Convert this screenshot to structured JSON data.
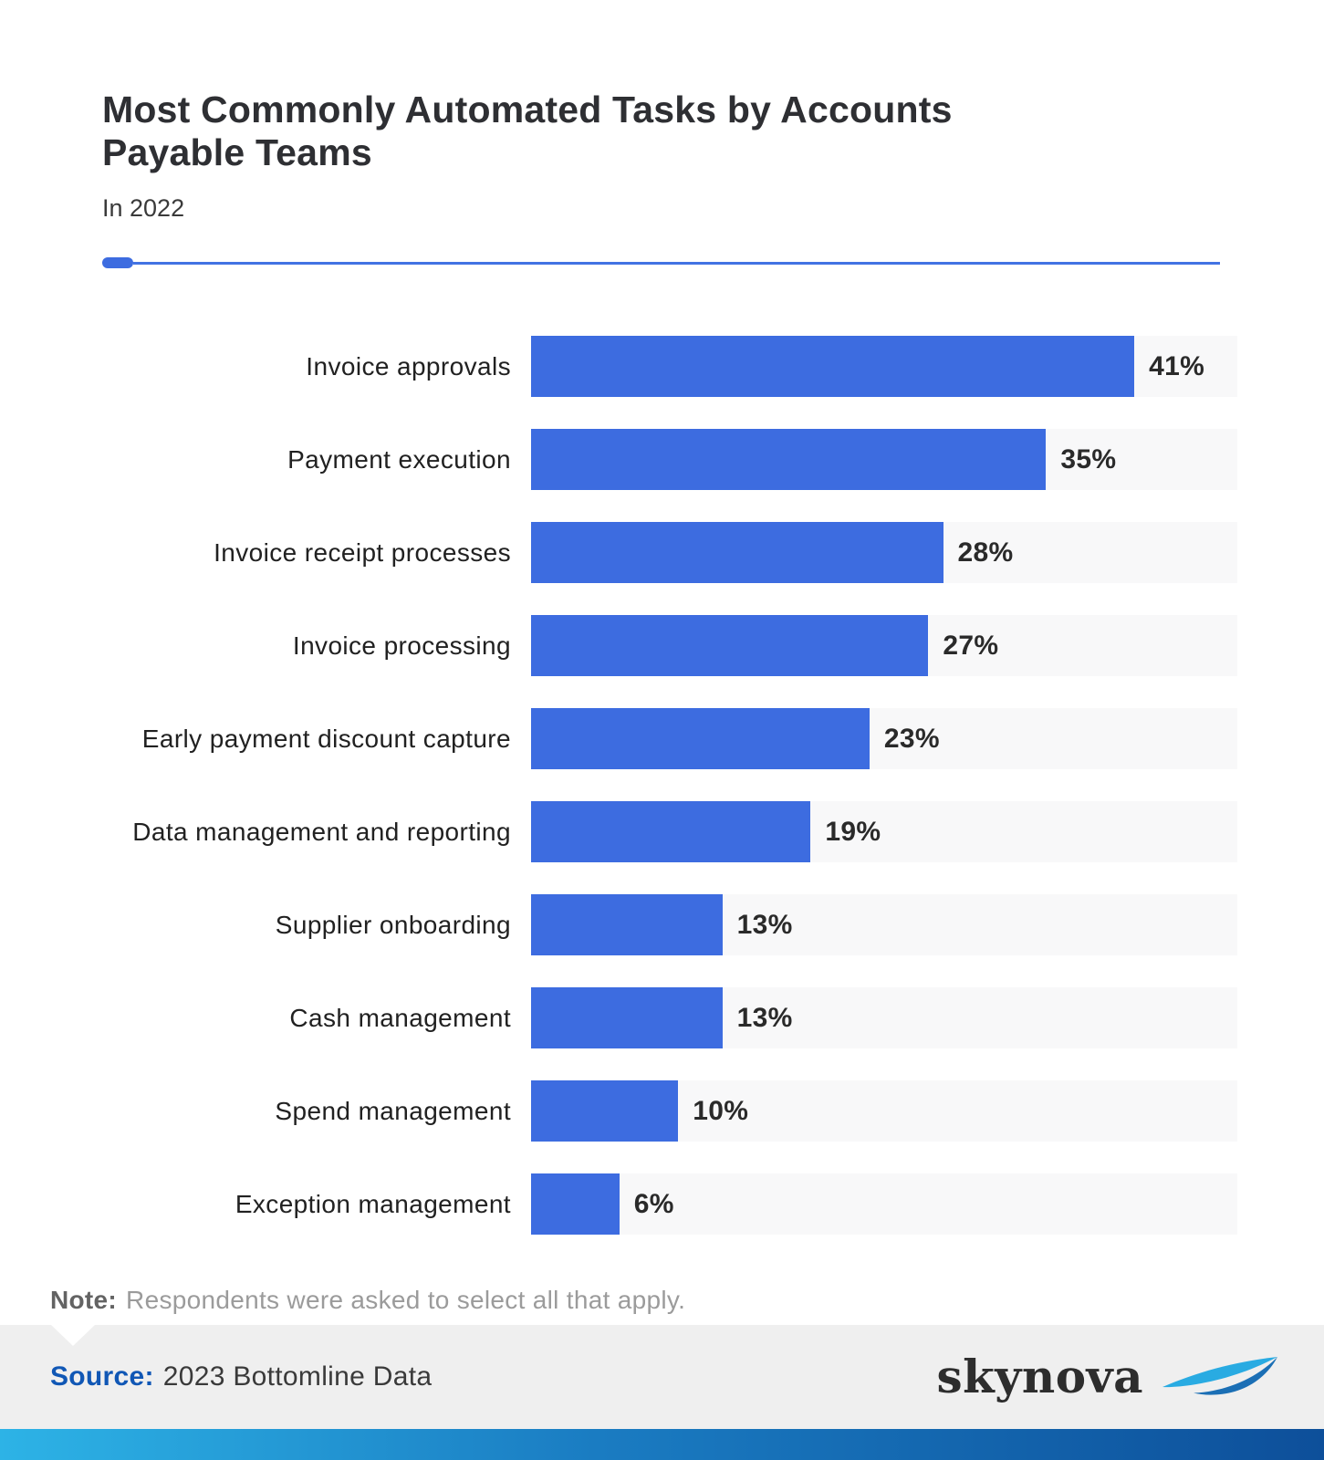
{
  "page": {
    "title_line1": "Most Commonly Automated Tasks by Accounts",
    "title_line2": "Payable Teams",
    "subtitle": "In 2022",
    "note_label": "Note:",
    "note_text": "Respondents were asked to select all that apply.",
    "source_label": "Source:",
    "source_text": "2023 Bottomline Data",
    "brand": "skynova"
  },
  "chart_data": {
    "type": "bar",
    "orientation": "horizontal",
    "title": "Most Commonly Automated Tasks by Accounts Payable Teams",
    "subtitle": "In 2022",
    "categories": [
      "Invoice approvals",
      "Payment execution",
      "Invoice receipt processes",
      "Invoice processing",
      "Early payment discount capture",
      "Data management and reporting",
      "Supplier onboarding",
      "Cash management",
      "Spend management",
      "Exception management"
    ],
    "values": [
      41,
      35,
      28,
      27,
      23,
      19,
      13,
      13,
      10,
      6
    ],
    "value_suffix": "%",
    "value_labels": "end-of-bar",
    "xlim": [
      0,
      48
    ],
    "grid": false,
    "legend": false,
    "bar_color": "#3d6ce0",
    "track_color": "#f8f8f9"
  },
  "colors": {
    "accent_blue": "#3d6ce0",
    "divider_blue": "#4273e3",
    "title_text": "#2e2f33",
    "source_blue": "#1057b5",
    "footer_bg": "#efefef",
    "gradient_left": "#2db3e6",
    "gradient_mid": "#1a7cc2",
    "gradient_right": "#0d4f9a",
    "logo_light_blue": "#29abe2",
    "logo_dark_blue": "#1b6fb5"
  }
}
